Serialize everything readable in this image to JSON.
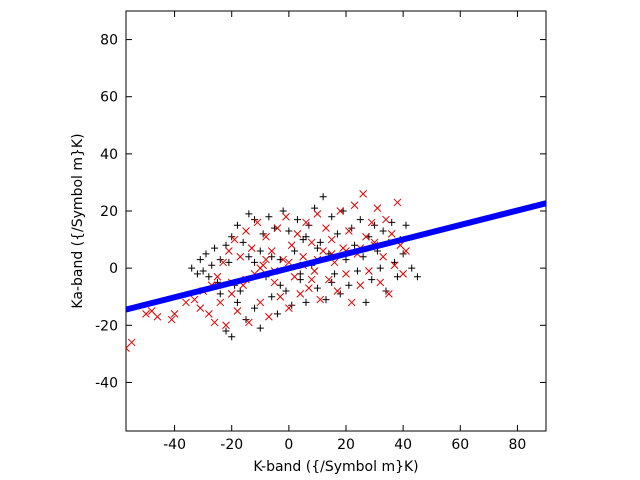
{
  "chart_data": {
    "type": "scatter",
    "title": "",
    "xlabel": "K-band ({/Symbol m}K)",
    "ylabel": "Ka-band ({/Symbol m}K)",
    "xlim": [
      -57,
      90
    ],
    "ylim": [
      -57,
      90
    ],
    "xticks": [
      -40,
      -20,
      0,
      20,
      40,
      60,
      80
    ],
    "yticks": [
      -40,
      -20,
      0,
      20,
      40,
      60,
      80
    ],
    "grid": false,
    "legend": "none",
    "series": [
      {
        "marker": "plus",
        "color": "#000000",
        "points": [
          [
            -34,
            0
          ],
          [
            -32,
            -2
          ],
          [
            -31,
            3
          ],
          [
            -30,
            -1
          ],
          [
            -29,
            5
          ],
          [
            -28,
            -3
          ],
          [
            -27,
            1
          ],
          [
            -26,
            7
          ],
          [
            -25,
            -5
          ],
          [
            -24,
            3
          ],
          [
            -24,
            -9
          ],
          [
            -22,
            8
          ],
          [
            -22,
            -22
          ],
          [
            -21,
            2
          ],
          [
            -20,
            -24
          ],
          [
            -20,
            11
          ],
          [
            -19,
            -6
          ],
          [
            -18,
            15
          ],
          [
            -18,
            -12
          ],
          [
            -16,
            9
          ],
          [
            -15,
            -18
          ],
          [
            -14,
            19
          ],
          [
            -14,
            4
          ],
          [
            -12,
            -14
          ],
          [
            -12,
            17
          ],
          [
            -10,
            6
          ],
          [
            -10,
            -21
          ],
          [
            -9,
            12
          ],
          [
            -8,
            -3
          ],
          [
            -7,
            18
          ],
          [
            -6,
            -10
          ],
          [
            -5,
            14
          ],
          [
            -4,
            -16
          ],
          [
            -3,
            3
          ],
          [
            -2,
            20
          ],
          [
            -1,
            -8
          ],
          [
            0,
            13
          ],
          [
            1,
            -13
          ],
          [
            2,
            6
          ],
          [
            3,
            17
          ],
          [
            4,
            -4
          ],
          [
            5,
            10
          ],
          [
            6,
            -12
          ],
          [
            7,
            15
          ],
          [
            8,
            1
          ],
          [
            9,
            21
          ],
          [
            10,
            -7
          ],
          [
            11,
            9
          ],
          [
            12,
            25
          ],
          [
            13,
            -11
          ],
          [
            14,
            5
          ],
          [
            15,
            18
          ],
          [
            16,
            -2
          ],
          [
            17,
            12
          ],
          [
            18,
            -9
          ],
          [
            19,
            20
          ],
          [
            20,
            3
          ],
          [
            21,
            -6
          ],
          [
            22,
            14
          ],
          [
            23,
            8
          ],
          [
            24,
            -1
          ],
          [
            25,
            17
          ],
          [
            26,
            4
          ],
          [
            27,
            -12
          ],
          [
            28,
            11
          ],
          [
            29,
            -4
          ],
          [
            30,
            15
          ],
          [
            31,
            6
          ],
          [
            32,
            0
          ],
          [
            33,
            13
          ],
          [
            34,
            -8
          ],
          [
            35,
            9
          ],
          [
            36,
            16
          ],
          [
            37,
            2
          ],
          [
            38,
            -3
          ],
          [
            39,
            10
          ],
          [
            40,
            5
          ],
          [
            41,
            15
          ],
          [
            43,
            0
          ],
          [
            45,
            -3
          ],
          [
            -6,
            4
          ],
          [
            4,
            -2
          ],
          [
            -12,
            2
          ],
          [
            10,
            7
          ],
          [
            -3,
            -6
          ],
          [
            6,
            11
          ],
          [
            -17,
            -8
          ],
          [
            15,
            -5
          ]
        ]
      },
      {
        "marker": "cross",
        "color": "#e00000",
        "points": [
          [
            -57,
            -28
          ],
          [
            -55,
            -26
          ],
          [
            -50,
            -16
          ],
          [
            -48,
            -15
          ],
          [
            -46,
            -17
          ],
          [
            -41,
            -18
          ],
          [
            -40,
            -16
          ],
          [
            -36,
            -12
          ],
          [
            -33,
            -11
          ],
          [
            -31,
            -14
          ],
          [
            -30,
            -8
          ],
          [
            -28,
            -16
          ],
          [
            -27,
            -6
          ],
          [
            -26,
            -19
          ],
          [
            -25,
            -3
          ],
          [
            -24,
            -12
          ],
          [
            -23,
            2
          ],
          [
            -22,
            -20
          ],
          [
            -21,
            6
          ],
          [
            -20,
            -9
          ],
          [
            -19,
            10
          ],
          [
            -18,
            -15
          ],
          [
            -17,
            4
          ],
          [
            -16,
            -6
          ],
          [
            -15,
            13
          ],
          [
            -14,
            -19
          ],
          [
            -13,
            7
          ],
          [
            -12,
            -2
          ],
          [
            -11,
            16
          ],
          [
            -10,
            -12
          ],
          [
            -9,
            1
          ],
          [
            -8,
            11
          ],
          [
            -7,
            -17
          ],
          [
            -6,
            6
          ],
          [
            -5,
            -5
          ],
          [
            -4,
            14
          ],
          [
            -3,
            -10
          ],
          [
            -2,
            3
          ],
          [
            -1,
            18
          ],
          [
            0,
            -14
          ],
          [
            1,
            8
          ],
          [
            2,
            -3
          ],
          [
            3,
            12
          ],
          [
            4,
            -9
          ],
          [
            5,
            4
          ],
          [
            6,
            16
          ],
          [
            7,
            -7
          ],
          [
            8,
            9
          ],
          [
            9,
            -1
          ],
          [
            10,
            19
          ],
          [
            11,
            -11
          ],
          [
            12,
            6
          ],
          [
            13,
            14
          ],
          [
            14,
            -4
          ],
          [
            15,
            10
          ],
          [
            16,
            2
          ],
          [
            17,
            -8
          ],
          [
            18,
            20
          ],
          [
            19,
            7
          ],
          [
            20,
            -2
          ],
          [
            21,
            13
          ],
          [
            22,
            -12
          ],
          [
            23,
            22
          ],
          [
            24,
            5
          ],
          [
            25,
            -6
          ],
          [
            26,
            26
          ],
          [
            27,
            11
          ],
          [
            28,
            -1
          ],
          [
            29,
            16
          ],
          [
            30,
            8
          ],
          [
            31,
            21
          ],
          [
            32,
            -5
          ],
          [
            33,
            4
          ],
          [
            34,
            17
          ],
          [
            35,
            -9
          ],
          [
            36,
            12
          ],
          [
            37,
            1
          ],
          [
            38,
            23
          ],
          [
            39,
            8
          ],
          [
            40,
            -2
          ],
          [
            41,
            6
          ],
          [
            -10,
            0
          ],
          [
            0,
            2
          ],
          [
            10,
            3
          ],
          [
            -5,
            -1
          ],
          [
            5,
            1
          ],
          [
            15,
            5
          ],
          [
            -15,
            -4
          ],
          [
            20,
            6
          ],
          [
            -20,
            -5
          ],
          [
            25,
            7
          ],
          [
            -25,
            -6
          ],
          [
            30,
            9
          ],
          [
            -8,
            3
          ],
          [
            8,
            -4
          ]
        ]
      }
    ],
    "fit_line": {
      "color": "#0000ff",
      "x": [
        -57,
        90
      ],
      "y": [
        -14.5,
        22.7
      ]
    }
  }
}
